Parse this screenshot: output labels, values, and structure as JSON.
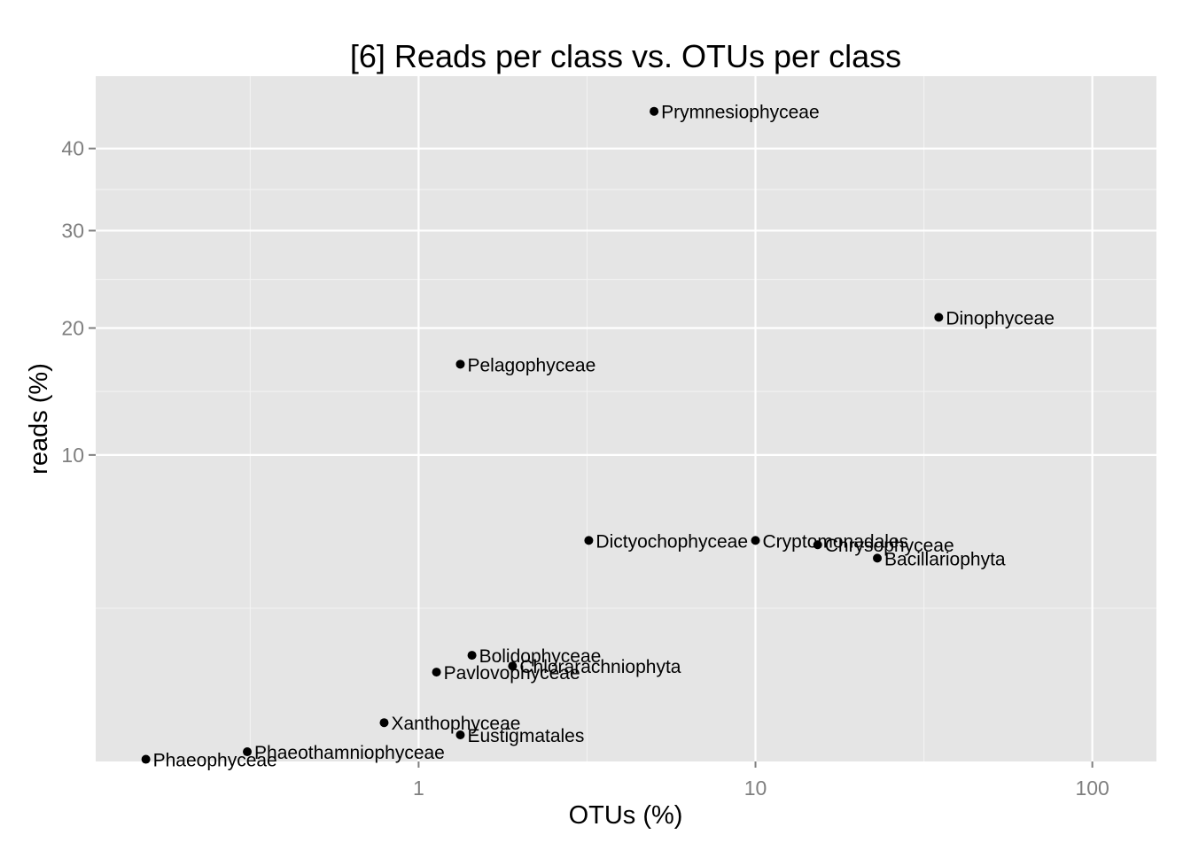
{
  "chart_data": {
    "type": "scatter",
    "title": "[6] Reads per class vs. OTUs per class",
    "xlabel": "OTUs (%)",
    "ylabel": "reads (%)",
    "x_scale": "log10",
    "y_scale": "sqrt",
    "xlim": [
      0.11,
      155
    ],
    "ylim": [
      0,
      50
    ],
    "x_ticks": [
      1,
      10,
      100
    ],
    "y_ticks": [
      10,
      20,
      30,
      40
    ],
    "grid": true,
    "legend": "none",
    "points": [
      {
        "label": "Prymnesiophyceae",
        "x": 5.0,
        "y": 45.0
      },
      {
        "label": "Dinophyceae",
        "x": 35.0,
        "y": 21.0
      },
      {
        "label": "Pelagophyceae",
        "x": 1.33,
        "y": 16.8
      },
      {
        "label": "Dictyochophyceae",
        "x": 3.2,
        "y": 5.2
      },
      {
        "label": "Cryptomonadales",
        "x": 10.0,
        "y": 5.2
      },
      {
        "label": "Chrysophyceae",
        "x": 15.3,
        "y": 5.0
      },
      {
        "label": "Bacillariophyta",
        "x": 23.0,
        "y": 4.4
      },
      {
        "label": "Bolidophyceae",
        "x": 1.44,
        "y": 1.2
      },
      {
        "label": "Chlorarachniophyta",
        "x": 1.9,
        "y": 0.97
      },
      {
        "label": "Pavlovophyceae",
        "x": 1.13,
        "y": 0.85
      },
      {
        "label": "Xanthophyceae",
        "x": 0.79,
        "y": 0.16
      },
      {
        "label": "Eustigmatales",
        "x": 1.33,
        "y": 0.075
      },
      {
        "label": "Phaeophyceae",
        "x": 0.155,
        "y": 0.0005
      },
      {
        "label": "Phaeothamniophyceae",
        "x": 0.31,
        "y": 0.01
      }
    ]
  }
}
